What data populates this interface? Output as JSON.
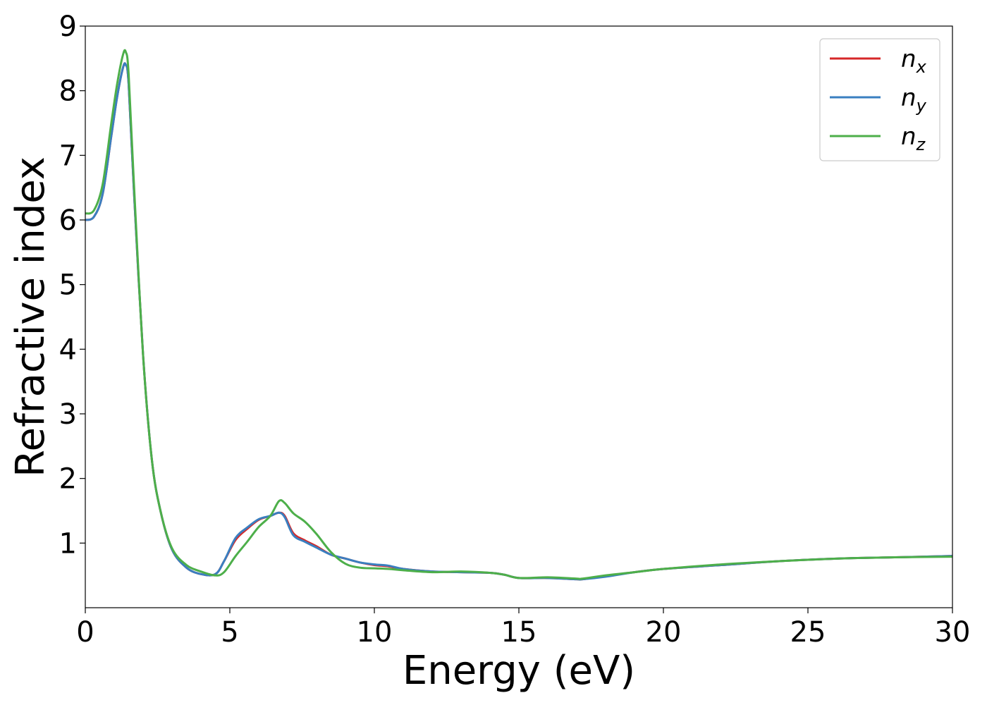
{
  "chart_data": {
    "type": "line",
    "title": "",
    "xlabel": "Energy (eV)",
    "ylabel": "Refractive index",
    "xlim": [
      0,
      30
    ],
    "ylim": [
      0,
      9
    ],
    "xticks": [
      0,
      5,
      10,
      15,
      20,
      25,
      30
    ],
    "xtick_labels": [
      "0",
      "5",
      "10",
      "15",
      "20",
      "25",
      "30"
    ],
    "yticks": [
      1,
      2,
      3,
      4,
      5,
      6,
      7,
      8,
      9
    ],
    "ytick_labels": [
      "1",
      "2",
      "3",
      "4",
      "5",
      "6",
      "7",
      "8",
      "9"
    ],
    "grid": false,
    "legend_position": "top-right",
    "series": [
      {
        "name": "n",
        "subscript": "x",
        "color": "#d62728",
        "x": [
          0,
          0.3,
          0.6,
          0.9,
          1.1,
          1.3,
          1.4,
          1.5,
          1.7,
          2.0,
          2.3,
          2.6,
          3.0,
          3.5,
          4.0,
          4.5,
          4.8,
          5.2,
          5.6,
          6.0,
          6.4,
          6.7,
          6.9,
          7.2,
          7.6,
          8.0,
          8.5,
          9.0,
          9.5,
          10.0,
          10.5,
          11.0,
          12.0,
          13.0,
          14.0,
          14.5,
          15.0,
          16.0,
          17.0,
          17.2,
          18.0,
          19.0,
          20.0,
          22.0,
          24.0,
          26.0,
          28.0,
          30.0
        ],
        "y": [
          6.0,
          6.05,
          6.4,
          7.3,
          7.9,
          8.35,
          8.4,
          8.1,
          6.3,
          3.9,
          2.3,
          1.5,
          0.9,
          0.62,
          0.52,
          0.52,
          0.72,
          1.05,
          1.22,
          1.36,
          1.42,
          1.47,
          1.42,
          1.15,
          1.04,
          0.95,
          0.82,
          0.76,
          0.7,
          0.66,
          0.64,
          0.6,
          0.56,
          0.55,
          0.54,
          0.51,
          0.46,
          0.46,
          0.44,
          0.44,
          0.49,
          0.55,
          0.6,
          0.66,
          0.72,
          0.76,
          0.78,
          0.8
        ]
      },
      {
        "name": "n",
        "subscript": "y",
        "color": "#3a7fc0",
        "x": [
          0,
          0.3,
          0.6,
          0.9,
          1.1,
          1.3,
          1.4,
          1.5,
          1.7,
          2.0,
          2.3,
          2.6,
          3.0,
          3.5,
          4.0,
          4.5,
          4.8,
          5.2,
          5.6,
          6.0,
          6.4,
          6.7,
          6.9,
          7.2,
          7.6,
          8.0,
          8.5,
          9.0,
          9.5,
          10.0,
          10.5,
          11.0,
          12.0,
          13.0,
          14.0,
          14.5,
          15.0,
          16.0,
          17.0,
          17.2,
          18.0,
          19.0,
          20.0,
          22.0,
          24.0,
          26.0,
          28.0,
          30.0
        ],
        "y": [
          6.0,
          6.05,
          6.4,
          7.3,
          7.9,
          8.35,
          8.4,
          8.1,
          6.3,
          3.9,
          2.3,
          1.5,
          0.9,
          0.62,
          0.52,
          0.52,
          0.72,
          1.08,
          1.24,
          1.37,
          1.42,
          1.47,
          1.4,
          1.12,
          1.02,
          0.93,
          0.82,
          0.76,
          0.7,
          0.67,
          0.65,
          0.6,
          0.56,
          0.55,
          0.54,
          0.51,
          0.46,
          0.46,
          0.44,
          0.44,
          0.48,
          0.55,
          0.6,
          0.66,
          0.72,
          0.76,
          0.78,
          0.8
        ]
      },
      {
        "name": "n",
        "subscript": "z",
        "color": "#4daf4a",
        "x": [
          0,
          0.3,
          0.6,
          0.9,
          1.1,
          1.3,
          1.4,
          1.5,
          1.7,
          2.0,
          2.3,
          2.6,
          3.0,
          3.5,
          4.0,
          4.5,
          4.8,
          5.2,
          5.6,
          6.0,
          6.4,
          6.7,
          6.9,
          7.2,
          7.6,
          8.0,
          8.5,
          9.0,
          9.5,
          10.0,
          10.5,
          11.0,
          12.0,
          13.0,
          14.0,
          14.5,
          15.0,
          16.0,
          17.0,
          17.2,
          18.0,
          19.0,
          20.0,
          22.0,
          24.0,
          26.0,
          28.0,
          30.0
        ],
        "y": [
          6.1,
          6.15,
          6.55,
          7.5,
          8.1,
          8.55,
          8.6,
          8.25,
          6.4,
          3.9,
          2.3,
          1.5,
          0.92,
          0.66,
          0.56,
          0.5,
          0.55,
          0.8,
          1.02,
          1.25,
          1.42,
          1.65,
          1.62,
          1.46,
          1.33,
          1.14,
          0.86,
          0.68,
          0.62,
          0.61,
          0.6,
          0.58,
          0.55,
          0.56,
          0.54,
          0.51,
          0.46,
          0.47,
          0.45,
          0.45,
          0.5,
          0.55,
          0.6,
          0.67,
          0.72,
          0.76,
          0.78,
          0.79
        ]
      }
    ]
  }
}
